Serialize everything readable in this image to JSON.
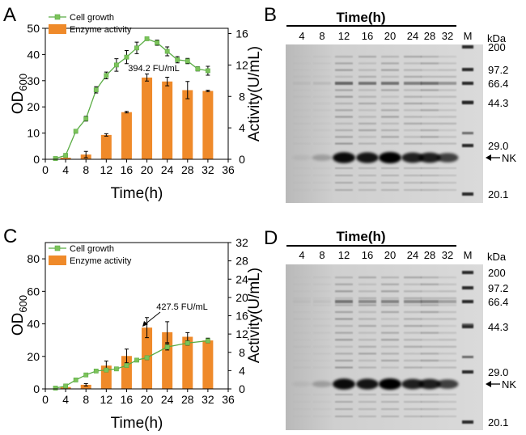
{
  "colors": {
    "growth": "#5aac44",
    "growth_marker": "#7cc35a",
    "bar": "#ef8a2a",
    "axis": "#000000",
    "gel_bg": "#d2d2d2"
  },
  "chart_data": [
    {
      "panel": "A",
      "type": "bar+line",
      "xlabel": "Time(h)",
      "ylabel_left": "OD600",
      "ylabel_right": "Activity(U/mL)",
      "xlim": [
        0,
        36
      ],
      "xticks": [
        "0",
        "4",
        "8",
        "12",
        "16",
        "20",
        "24",
        "28",
        "32",
        "36"
      ],
      "ylim_left": [
        0,
        50
      ],
      "yticks_left": [
        "0",
        "10",
        "20",
        "30",
        "40",
        "50"
      ],
      "ylim_right": [
        0,
        16.67
      ],
      "yticks_right": [
        "0",
        "4",
        "8",
        "12",
        "16"
      ],
      "legend": [
        "Cell growth",
        "Enzyme activity"
      ],
      "annotation": "394.2 FU/mL",
      "series": [
        {
          "name": "Cell growth",
          "type": "line",
          "x": [
            2,
            4,
            6,
            8,
            10,
            12,
            14,
            16,
            18,
            20,
            22,
            24,
            26,
            28,
            30,
            32
          ],
          "values": [
            0.3,
            1.5,
            10.7,
            15.5,
            26.5,
            32.0,
            36.0,
            39.0,
            42.5,
            46.0,
            44.5,
            41.2,
            38.0,
            37.5,
            34.5,
            33.8
          ],
          "errors": [
            0.3,
            0.5,
            0.7,
            0.9,
            1.2,
            1.3,
            2.4,
            2.5,
            2.2,
            0.6,
            1.0,
            1.7,
            1.2,
            1.0,
            0.8,
            1.7
          ]
        },
        {
          "name": "Enzyme activity",
          "type": "bar",
          "x": [
            4,
            8,
            12,
            16,
            20,
            24,
            28,
            32
          ],
          "values": [
            0.2,
            0.6,
            3.1,
            6.0,
            10.4,
            9.9,
            8.8,
            8.7
          ],
          "errors": [
            0.05,
            0.4,
            0.15,
            0.1,
            0.45,
            0.55,
            1.1,
            0.1
          ]
        }
      ]
    },
    {
      "panel": "C",
      "type": "bar+line",
      "xlabel": "Time(h)",
      "ylabel_left": "OD600",
      "ylabel_right": "Activity(U/mL)",
      "xlim": [
        0,
        36
      ],
      "xticks": [
        "0",
        "4",
        "8",
        "12",
        "16",
        "20",
        "24",
        "28",
        "32",
        "36"
      ],
      "ylim_left": [
        0,
        90
      ],
      "yticks_left": [
        "0",
        "20",
        "40",
        "60",
        "80"
      ],
      "ylim_right": [
        0,
        32
      ],
      "yticks_right": [
        "0",
        "4",
        "8",
        "12",
        "16",
        "20",
        "24",
        "28",
        "32"
      ],
      "legend": [
        "Cell growth",
        "Enzyme activity"
      ],
      "annotation": "427.5 FU/mL",
      "series": [
        {
          "name": "Cell growth",
          "type": "line",
          "x": [
            2,
            4,
            6,
            8,
            10,
            12,
            14,
            16,
            18,
            20,
            24,
            28,
            32
          ],
          "values": [
            0.5,
            1.8,
            5.5,
            8.6,
            11.0,
            11.6,
            12.3,
            14.4,
            17.7,
            19.2,
            25.8,
            28.2,
            29.6
          ],
          "errors": [
            0.3,
            0.7,
            0.7,
            0.8,
            0.8,
            0.7,
            0.7,
            0.9,
            0.8,
            1.2,
            1.9,
            1.3,
            0.8
          ]
        },
        {
          "name": "Enzyme activity",
          "type": "bar",
          "x": [
            4,
            8,
            12,
            16,
            20,
            24,
            28,
            32
          ],
          "values": [
            0.4,
            0.9,
            5.1,
            7.2,
            13.4,
            12.4,
            11.4,
            10.6
          ],
          "errors": [
            0.05,
            0.25,
            1.0,
            1.5,
            2.2,
            2.3,
            0.9,
            0.5
          ]
        }
      ]
    }
  ],
  "gels": [
    {
      "panel": "B",
      "header": "Time(h)",
      "lanes": [
        "4",
        "8",
        "12",
        "16",
        "20",
        "24",
        "28",
        "32",
        "M"
      ],
      "unit": "kDa",
      "markers": [
        "200",
        "97.2",
        "66.4",
        "44.3",
        "29.0",
        "20.1"
      ],
      "target_label": "NK"
    },
    {
      "panel": "D",
      "header": "Time(h)",
      "lanes": [
        "4",
        "8",
        "12",
        "16",
        "20",
        "24",
        "28",
        "32",
        "M"
      ],
      "unit": "kDa",
      "markers": [
        "200",
        "97.2",
        "66.4",
        "44.3",
        "29.0",
        "20.1"
      ],
      "target_label": "NK"
    }
  ]
}
